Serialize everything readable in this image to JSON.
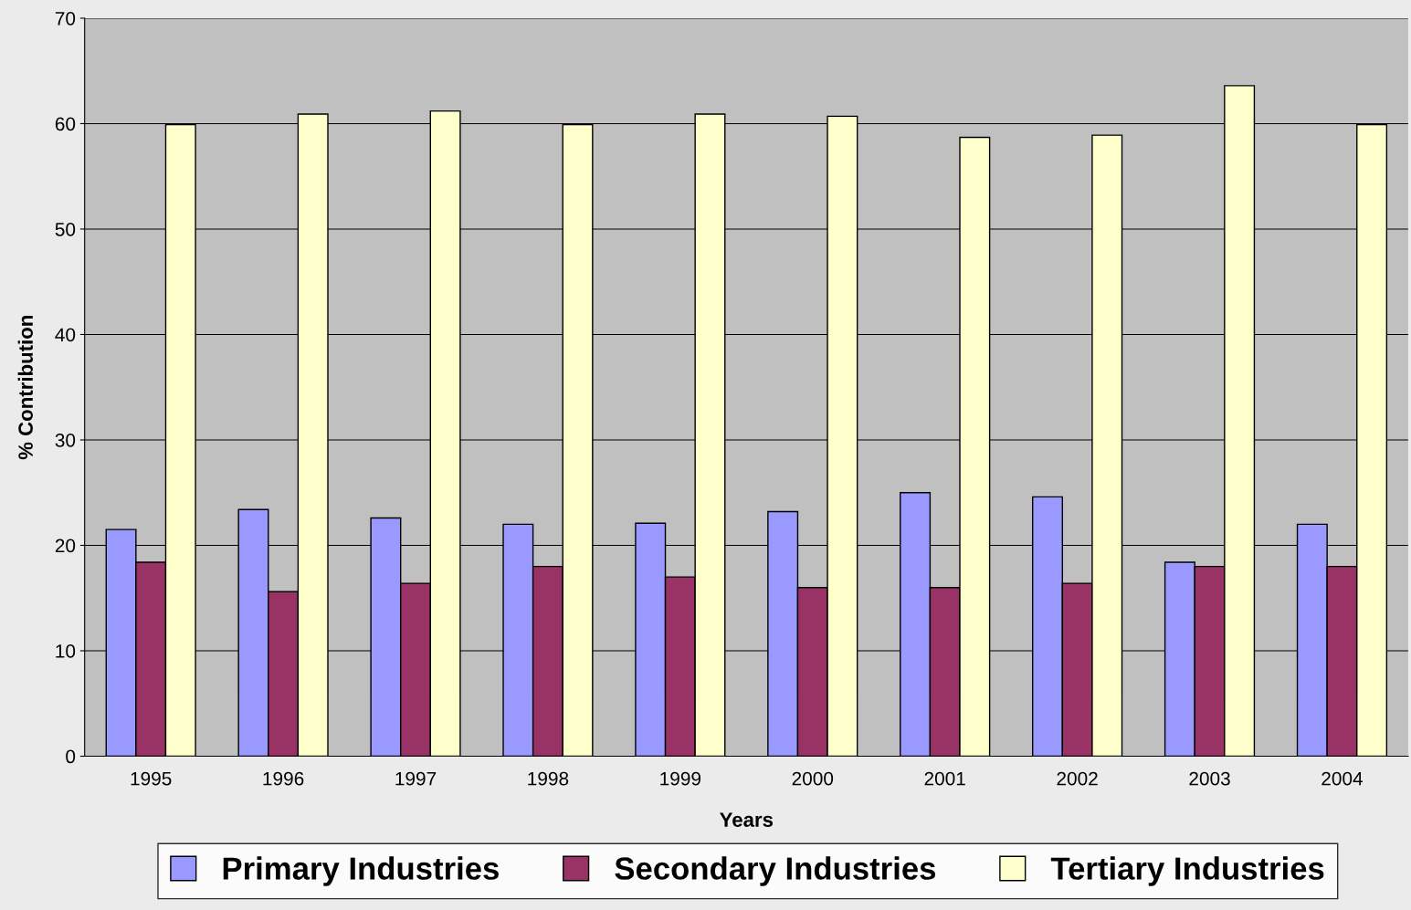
{
  "chart_data": {
    "type": "bar",
    "xlabel": "Years",
    "ylabel": "% Contribution",
    "categories": [
      "1995",
      "1996",
      "1997",
      "1998",
      "1999",
      "2000",
      "2001",
      "2002",
      "2003",
      "2004"
    ],
    "series": [
      {
        "name": "Primary Industries",
        "color": "#9999ff",
        "values": [
          21.5,
          23.4,
          22.6,
          22.0,
          22.1,
          23.2,
          25.0,
          24.6,
          18.4,
          22.0
        ]
      },
      {
        "name": "Secondary Industries",
        "color": "#993366",
        "values": [
          18.4,
          15.6,
          16.4,
          18.0,
          17.0,
          16.0,
          16.0,
          16.4,
          18.0,
          18.0
        ]
      },
      {
        "name": "Tertiary Industries",
        "color": "#ffffcc",
        "values": [
          59.9,
          60.9,
          61.2,
          59.9,
          60.9,
          60.7,
          58.7,
          58.9,
          63.6,
          59.9
        ]
      }
    ],
    "ylim": [
      0,
      70
    ],
    "yticks": [
      0,
      10,
      20,
      30,
      40,
      50,
      60,
      70
    ],
    "grid": "y",
    "legend": "bottom"
  }
}
